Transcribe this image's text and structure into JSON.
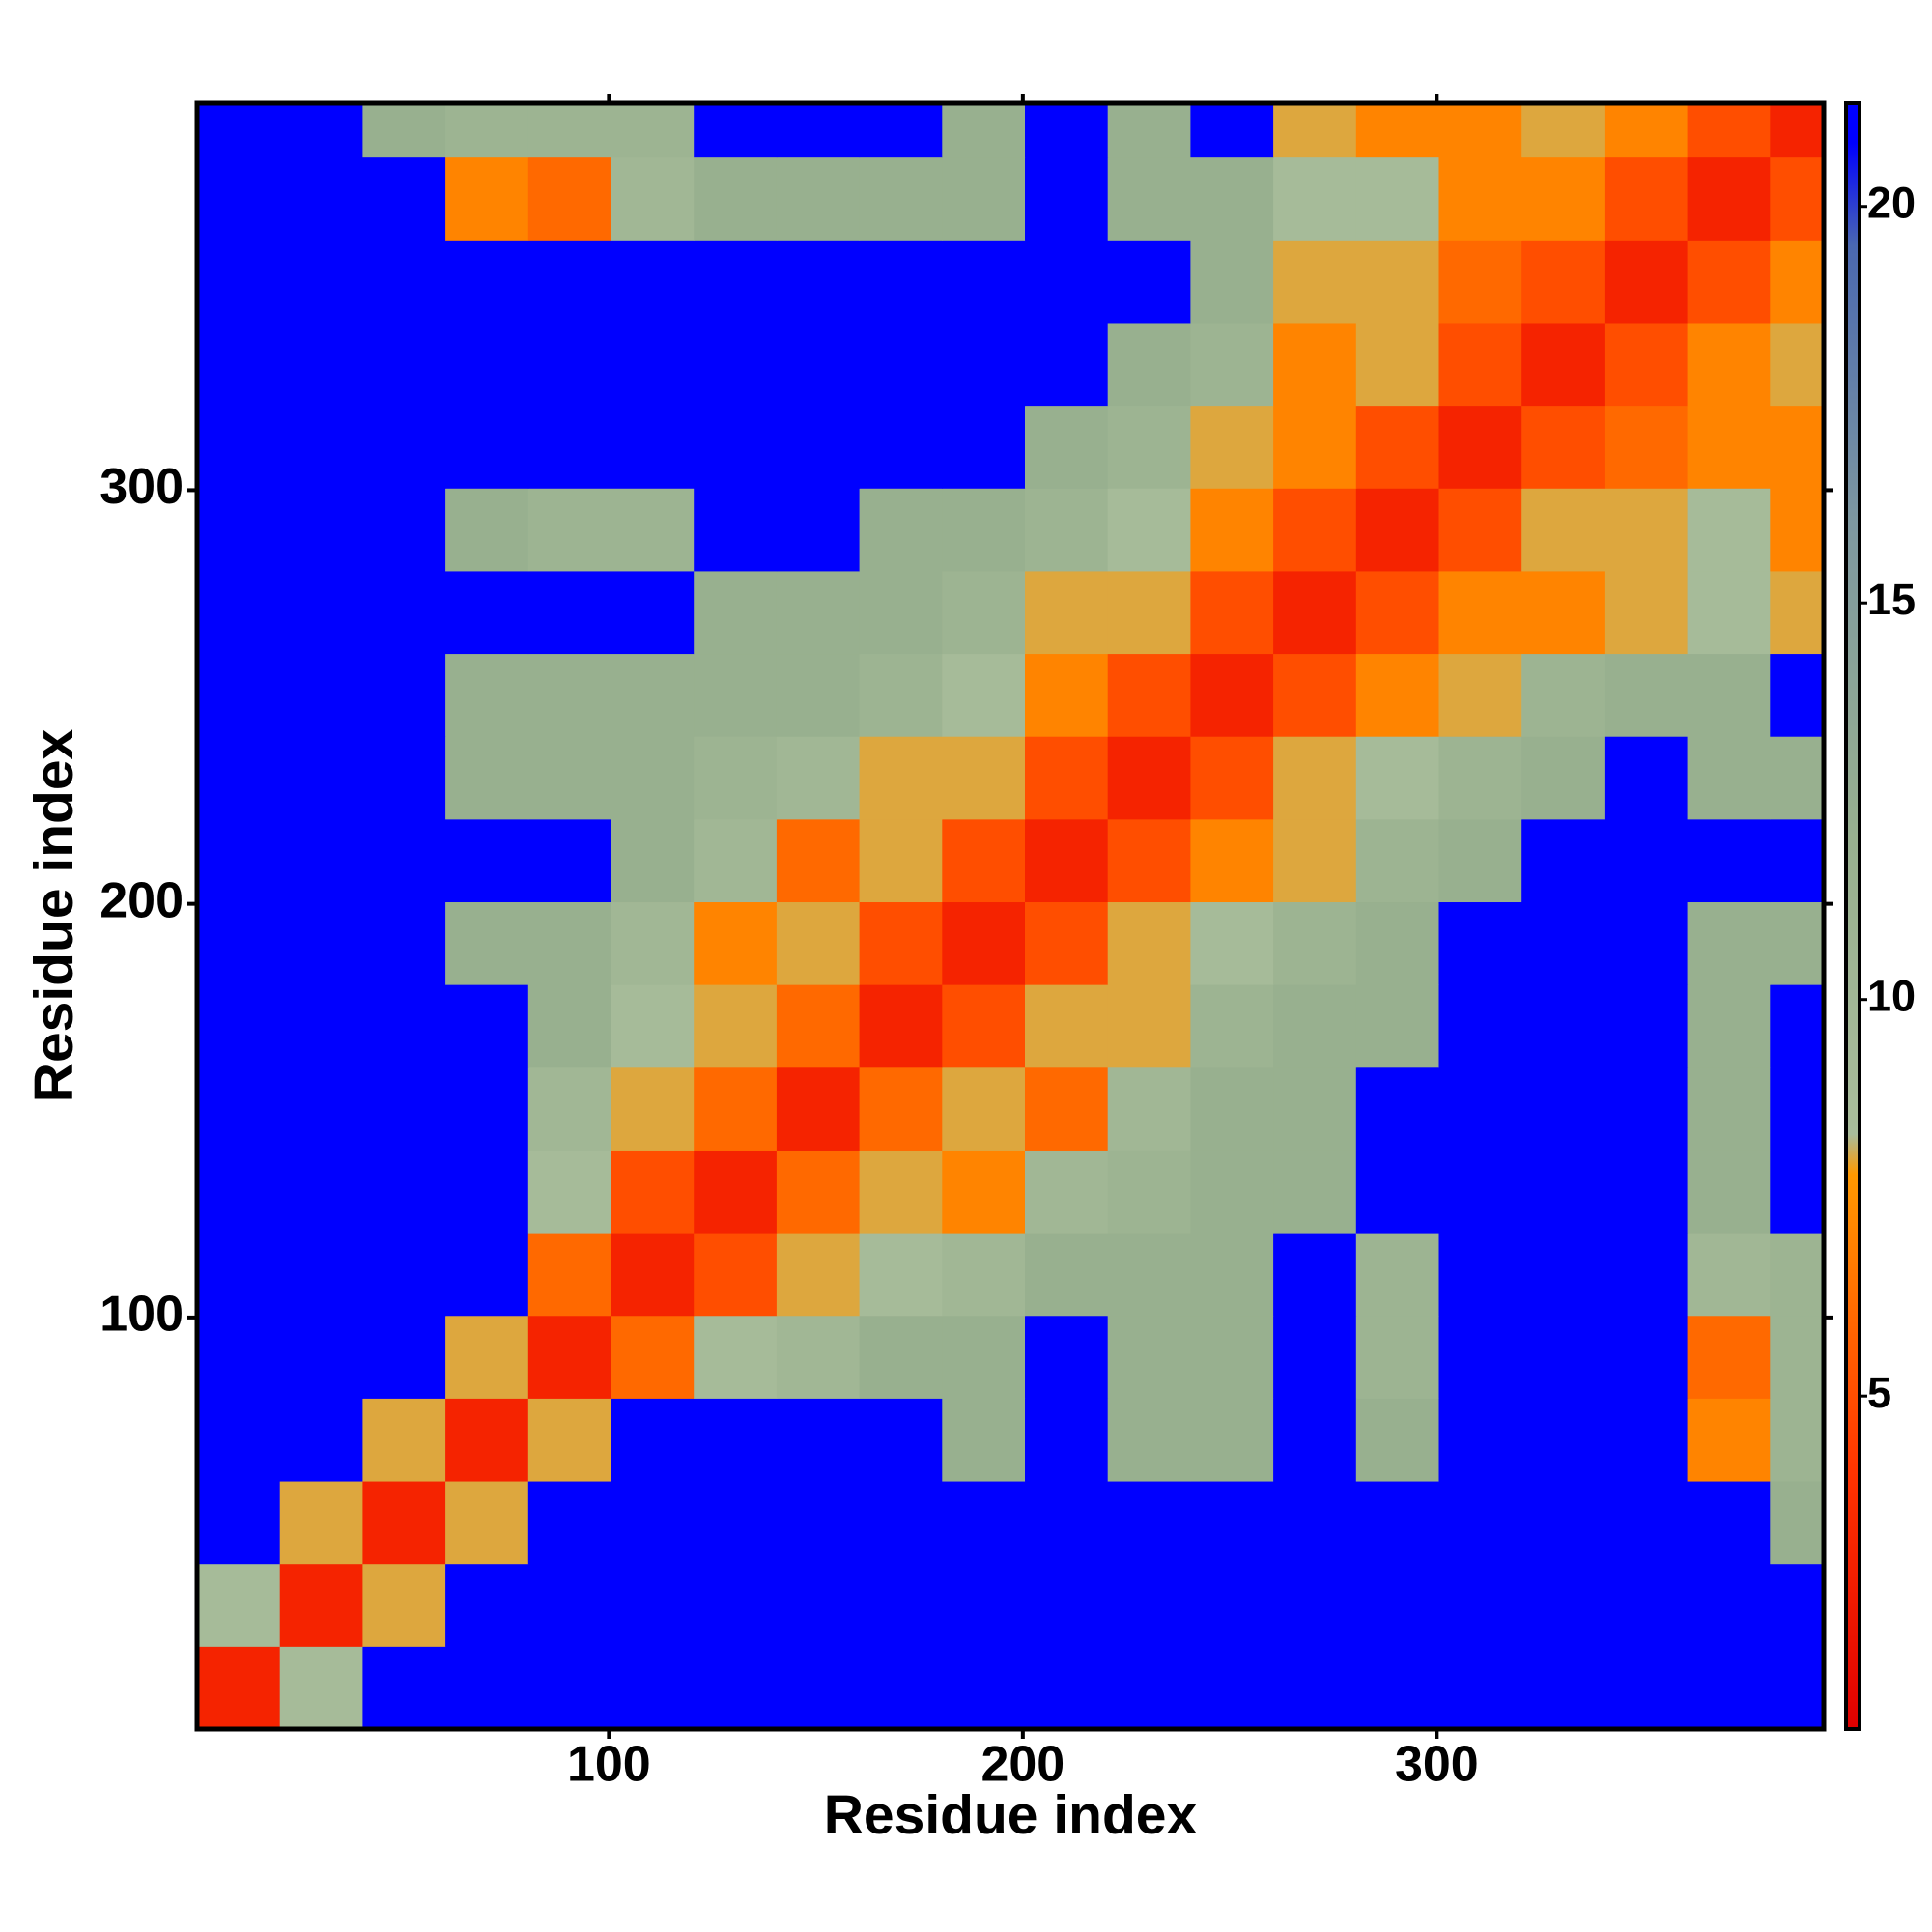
{
  "chart_data": {
    "type": "heatmap",
    "xlabel": "Residue index",
    "ylabel": "Residue index",
    "x_bins": [
      0.5,
      20.5,
      40.5,
      60.5,
      80.5,
      100.5,
      120.5,
      140.5,
      160.5,
      180.5,
      200.5,
      220.5,
      240.5,
      260.5,
      280.5,
      300.5,
      320.5,
      340.5,
      360.5,
      380.5,
      393.5
    ],
    "y_bins": [
      0.5,
      20.5,
      40.5,
      60.5,
      80.5,
      100.5,
      120.5,
      140.5,
      160.5,
      180.5,
      200.5,
      220.5,
      240.5,
      260.5,
      280.5,
      300.5,
      320.5,
      340.5,
      360.5,
      380.5,
      393.5
    ],
    "z": [
      [
        3,
        9,
        21,
        21,
        21,
        21,
        21,
        21,
        21,
        21,
        21,
        21,
        21,
        21,
        21,
        21,
        21,
        21,
        21,
        21
      ],
      [
        9,
        3,
        8,
        21,
        21,
        21,
        21,
        21,
        21,
        21,
        21,
        21,
        21,
        21,
        21,
        21,
        21,
        21,
        21,
        21
      ],
      [
        21,
        8,
        3,
        8,
        21,
        21,
        21,
        21,
        21,
        21,
        21,
        21,
        21,
        21,
        21,
        21,
        21,
        21,
        21,
        12
      ],
      [
        21,
        21,
        8,
        3,
        8,
        21,
        21,
        21,
        21,
        12,
        21,
        12,
        12,
        21,
        12,
        21,
        21,
        21,
        7,
        11
      ],
      [
        21,
        21,
        21,
        8,
        3,
        6,
        9,
        10,
        12,
        12,
        21,
        12,
        12,
        21,
        11,
        21,
        21,
        21,
        6,
        11
      ],
      [
        21,
        21,
        21,
        21,
        6,
        3,
        5,
        8,
        9,
        10,
        12,
        12,
        12,
        21,
        11,
        21,
        21,
        21,
        10,
        11
      ],
      [
        21,
        21,
        21,
        21,
        9,
        5,
        3,
        6,
        8,
        7,
        10,
        11,
        12,
        12,
        21,
        21,
        21,
        21,
        12,
        21
      ],
      [
        21,
        21,
        21,
        21,
        10,
        8,
        6,
        3,
        6,
        8,
        6,
        10,
        12,
        12,
        21,
        21,
        21,
        21,
        12,
        21
      ],
      [
        21,
        21,
        21,
        21,
        12,
        9,
        8,
        6,
        3,
        5,
        8,
        8,
        11,
        12,
        12,
        21,
        21,
        21,
        12,
        21
      ],
      [
        21,
        21,
        21,
        12,
        12,
        10,
        7,
        8,
        5,
        3,
        5,
        8,
        9,
        11,
        12,
        21,
        21,
        21,
        12,
        12
      ],
      [
        21,
        21,
        21,
        21,
        21,
        12,
        10,
        6,
        8,
        5,
        3,
        5,
        7,
        8,
        11,
        12,
        21,
        21,
        21,
        21
      ],
      [
        21,
        21,
        21,
        12,
        12,
        12,
        11,
        10,
        8,
        8,
        5,
        3,
        5,
        8,
        9,
        11,
        12,
        21,
        12,
        12
      ],
      [
        21,
        21,
        21,
        12,
        12,
        12,
        12,
        12,
        11,
        9,
        7,
        5,
        3,
        5,
        7,
        8,
        11,
        12,
        12,
        21
      ],
      [
        21,
        21,
        21,
        21,
        21,
        21,
        12,
        12,
        12,
        11,
        8,
        8,
        5,
        3,
        5,
        7,
        7,
        8,
        9,
        8
      ],
      [
        21,
        21,
        21,
        12,
        11,
        11,
        21,
        21,
        12,
        12,
        11,
        9,
        7,
        5,
        3,
        5,
        8,
        8,
        9,
        7
      ],
      [
        21,
        21,
        21,
        21,
        21,
        21,
        21,
        21,
        21,
        21,
        12,
        11,
        8,
        7,
        5,
        3,
        5,
        6,
        7,
        7
      ],
      [
        21,
        21,
        21,
        21,
        21,
        21,
        21,
        21,
        21,
        21,
        21,
        12,
        11,
        7,
        8,
        5,
        3,
        5,
        7,
        8
      ],
      [
        21,
        21,
        21,
        21,
        21,
        21,
        21,
        21,
        21,
        21,
        21,
        21,
        12,
        8,
        8,
        6,
        5,
        3,
        5,
        7
      ],
      [
        21,
        21,
        21,
        7,
        6,
        10,
        12,
        12,
        12,
        12,
        21,
        12,
        12,
        9,
        9,
        7,
        7,
        5,
        3,
        5
      ],
      [
        21,
        21,
        12,
        11,
        11,
        11,
        21,
        21,
        21,
        12,
        21,
        12,
        21,
        8,
        7,
        7,
        8,
        7,
        5,
        3
      ]
    ],
    "xlim": [
      0.5,
      393.5
    ],
    "ylim": [
      0.5,
      393.5
    ],
    "xticks": [
      100,
      200,
      300
    ],
    "yticks": [
      100,
      200,
      300
    ],
    "clim": [
      0.8,
      21.3
    ],
    "cticks": [
      5,
      10,
      15,
      20
    ],
    "colorscale": [
      [
        0.8,
        "#e00000"
      ],
      [
        4,
        "#ff3300"
      ],
      [
        7.8,
        "#ff9900"
      ],
      [
        8.3,
        "#a9bd9b"
      ],
      [
        12,
        "#98b08f"
      ],
      [
        16,
        "#7e98a0"
      ],
      [
        19.5,
        "#4a68b0"
      ],
      [
        20.8,
        "#0000ff"
      ]
    ]
  }
}
